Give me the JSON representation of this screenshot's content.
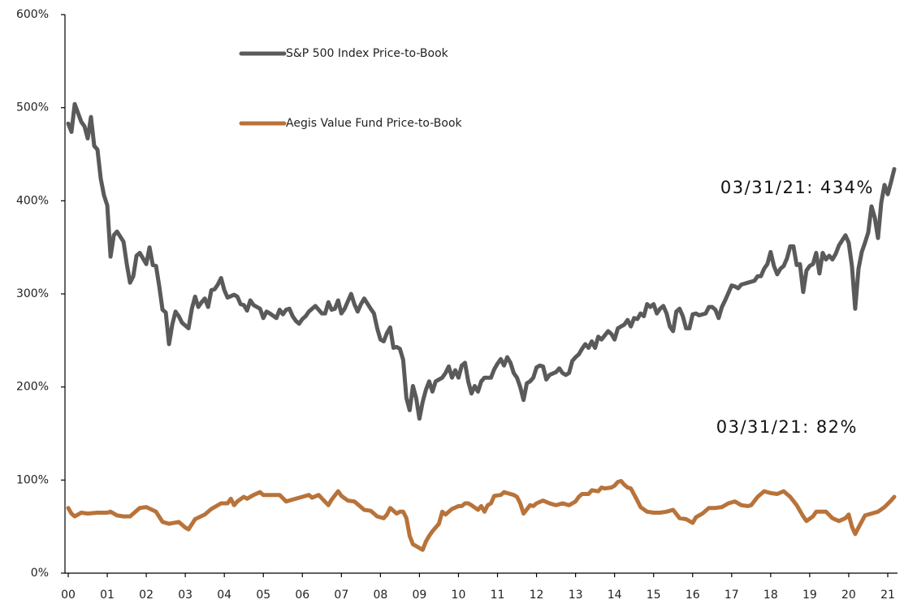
{
  "chart_data": {
    "type": "line",
    "series": [
      {
        "name": "S&P 500 Index Price-to-Book",
        "color": "#5a5a5a",
        "x": [
          0,
          1,
          2,
          4,
          5,
          6,
          7,
          8,
          9,
          10,
          11,
          12,
          13,
          14,
          15,
          17,
          18,
          19,
          20,
          21,
          22,
          24,
          25,
          26,
          27,
          28,
          29,
          30,
          31,
          32,
          33,
          34,
          35,
          37,
          38,
          39,
          40,
          41,
          42,
          43,
          44,
          45,
          46,
          47,
          48,
          49,
          51,
          52,
          53,
          54,
          55,
          56,
          57,
          59,
          60,
          61,
          62,
          64,
          65,
          66,
          67,
          68,
          69,
          70,
          71,
          72,
          73,
          74,
          75,
          76,
          78,
          79,
          80,
          81,
          82,
          83,
          84,
          85,
          87,
          88,
          89,
          90,
          91,
          93,
          94,
          95,
          96,
          97,
          98,
          99,
          100,
          101,
          102,
          103,
          104,
          105,
          106,
          107,
          108,
          109,
          110,
          111,
          112,
          113,
          115,
          116,
          117,
          118,
          119,
          120,
          121,
          122,
          123,
          124,
          125,
          126,
          127,
          128,
          130,
          131,
          132,
          133,
          134,
          135,
          136,
          137,
          138,
          139,
          140,
          141,
          142,
          143,
          144,
          145,
          146,
          147,
          148,
          150,
          151,
          152,
          153,
          154,
          155,
          156,
          157,
          158,
          159,
          160,
          161,
          162,
          163,
          164,
          166,
          167,
          168,
          169,
          170,
          171,
          172,
          173,
          174,
          175,
          176,
          177,
          178,
          179,
          180,
          181,
          182,
          183,
          184,
          185,
          186,
          187,
          188,
          189,
          190,
          191,
          192,
          193,
          194,
          196,
          197,
          198,
          199,
          200,
          201,
          202,
          204,
          205,
          206,
          207,
          208,
          209,
          211,
          212,
          213,
          214,
          215,
          216,
          217,
          218,
          219,
          220,
          221,
          222,
          223,
          224,
          225,
          226,
          227,
          228,
          229,
          230,
          231,
          232,
          233,
          234,
          235,
          236,
          237,
          239,
          240,
          241,
          242,
          243,
          244,
          245,
          246,
          247,
          248,
          249,
          250,
          251,
          252,
          253,
          254
        ],
        "values": [
          483,
          474,
          504,
          485,
          480,
          467,
          490,
          459,
          455,
          424,
          406,
          395,
          340,
          363,
          367,
          356,
          332,
          312,
          319,
          341,
          344,
          332,
          350,
          331,
          330,
          308,
          283,
          280,
          246,
          267,
          281,
          276,
          269,
          263,
          284,
          297,
          286,
          291,
          295,
          286,
          304,
          305,
          310,
          317,
          304,
          296,
          299,
          297,
          289,
          288,
          282,
          293,
          288,
          284,
          274,
          281,
          279,
          274,
          283,
          278,
          283,
          284,
          276,
          271,
          268,
          273,
          276,
          281,
          284,
          287,
          279,
          279,
          291,
          283,
          284,
          293,
          279,
          284,
          300,
          289,
          281,
          289,
          295,
          284,
          279,
          263,
          251,
          249,
          258,
          264,
          242,
          243,
          241,
          229,
          188,
          175,
          201,
          188,
          166,
          184,
          197,
          206,
          195,
          206,
          210,
          215,
          222,
          210,
          218,
          210,
          223,
          226,
          206,
          193,
          201,
          195,
          206,
          210,
          210,
          219,
          225,
          230,
          223,
          232,
          226,
          215,
          210,
          200,
          186,
          204,
          206,
          210,
          221,
          223,
          222,
          208,
          213,
          216,
          220,
          215,
          213,
          215,
          228,
          232,
          235,
          241,
          246,
          242,
          249,
          242,
          254,
          251,
          260,
          257,
          251,
          263,
          265,
          267,
          272,
          265,
          274,
          273,
          279,
          276,
          289,
          286,
          289,
          279,
          284,
          287,
          279,
          265,
          260,
          281,
          284,
          276,
          263,
          263,
          278,
          279,
          277,
          279,
          286,
          286,
          283,
          274,
          286,
          293,
          309,
          308,
          306,
          310,
          311,
          312,
          314,
          319,
          319,
          327,
          332,
          345,
          330,
          321,
          327,
          330,
          338,
          351,
          351,
          331,
          332,
          302,
          325,
          330,
          332,
          344,
          322,
          344,
          337,
          341,
          337,
          343,
          352,
          363,
          355,
          330,
          284,
          327,
          345,
          355,
          366,
          394,
          382,
          360,
          398,
          417,
          407,
          420,
          434
        ]
      },
      {
        "name": "Aegis Value Fund Price-to-Book",
        "color": "#b8733a",
        "x": [
          0,
          1,
          2,
          3,
          4,
          6,
          9,
          12,
          13,
          15,
          17,
          19,
          22,
          24,
          27,
          29,
          31,
          34,
          36,
          37,
          39,
          42,
          44,
          47,
          49,
          50,
          51,
          52,
          54,
          55,
          57,
          59,
          60,
          63,
          65,
          67,
          69,
          72,
          74,
          75,
          77,
          80,
          81,
          83,
          84,
          86,
          88,
          91,
          93,
          95,
          97,
          98,
          99,
          101,
          102,
          103,
          104,
          105,
          106,
          107,
          109,
          110,
          111,
          112,
          114,
          115,
          116,
          118,
          120,
          121,
          122,
          123,
          124,
          126,
          127,
          128,
          129,
          130,
          131,
          133,
          134,
          135,
          137,
          138,
          139,
          140,
          142,
          143,
          144,
          146,
          148,
          150,
          152,
          154,
          156,
          157,
          158,
          160,
          161,
          163,
          164,
          165,
          167,
          168,
          169,
          170,
          171,
          172,
          173,
          175,
          176,
          178,
          180,
          182,
          184,
          186,
          188,
          190,
          192,
          193,
          195,
          197,
          199,
          201,
          203,
          205,
          207,
          209,
          210,
          212,
          214,
          216,
          218,
          220,
          222,
          224,
          226,
          227,
          229,
          230,
          233,
          235,
          237,
          239,
          240,
          241,
          242,
          243,
          245,
          247,
          249,
          251,
          253,
          254
        ],
        "values": [
          70,
          64,
          61,
          63,
          65,
          64,
          65,
          65,
          66,
          62,
          61,
          61,
          70,
          71,
          66,
          55,
          53,
          55,
          49,
          47,
          58,
          63,
          69,
          75,
          75,
          80,
          73,
          77,
          82,
          80,
          84,
          87,
          84,
          84,
          84,
          77,
          79,
          82,
          84,
          81,
          84,
          73,
          79,
          88,
          83,
          78,
          77,
          68,
          67,
          61,
          59,
          63,
          70,
          64,
          66,
          66,
          59,
          40,
          31,
          29,
          25,
          34,
          40,
          45,
          53,
          66,
          63,
          69,
          72,
          72,
          75,
          75,
          73,
          68,
          72,
          66,
          73,
          75,
          83,
          84,
          87,
          86,
          84,
          82,
          75,
          64,
          73,
          72,
          75,
          78,
          75,
          73,
          75,
          73,
          77,
          82,
          85,
          85,
          89,
          88,
          92,
          91,
          92,
          94,
          98,
          99,
          95,
          92,
          91,
          78,
          71,
          66,
          65,
          65,
          66,
          68,
          59,
          58,
          54,
          60,
          64,
          70,
          70,
          71,
          75,
          77,
          73,
          72,
          73,
          82,
          88,
          86,
          85,
          88,
          82,
          73,
          61,
          56,
          61,
          66,
          66,
          59,
          56,
          59,
          63,
          50,
          42,
          49,
          62,
          64,
          66,
          71,
          78,
          82
        ]
      }
    ],
    "annotations": [
      "03/31/21: 434%",
      "03/31/21: 82%"
    ],
    "xlim": [
      -1,
      255
    ],
    "xticks": [
      {
        "value": 0,
        "label": "00"
      },
      {
        "value": 12,
        "label": "01"
      },
      {
        "value": 24,
        "label": "02"
      },
      {
        "value": 36,
        "label": "03"
      },
      {
        "value": 48,
        "label": "04"
      },
      {
        "value": 60,
        "label": "05"
      },
      {
        "value": 72,
        "label": "06"
      },
      {
        "value": 84,
        "label": "07"
      },
      {
        "value": 96,
        "label": "08"
      },
      {
        "value": 108,
        "label": "09"
      },
      {
        "value": 120,
        "label": "10"
      },
      {
        "value": 132,
        "label": "11"
      },
      {
        "value": 144,
        "label": "12"
      },
      {
        "value": 156,
        "label": "13"
      },
      {
        "value": 168,
        "label": "14"
      },
      {
        "value": 180,
        "label": "15"
      },
      {
        "value": 192,
        "label": "16"
      },
      {
        "value": 204,
        "label": "17"
      },
      {
        "value": 216,
        "label": "18"
      },
      {
        "value": 228,
        "label": "19"
      },
      {
        "value": 240,
        "label": "20"
      },
      {
        "value": 252,
        "label": "21"
      }
    ],
    "ylim": [
      0,
      600
    ],
    "yticks": [
      {
        "value": 0,
        "label": "0%"
      },
      {
        "value": 100,
        "label": "100%"
      },
      {
        "value": 200,
        "label": "200%"
      },
      {
        "value": 300,
        "label": "300%"
      },
      {
        "value": 400,
        "label": "400%"
      },
      {
        "value": 500,
        "label": "500%"
      },
      {
        "value": 600,
        "label": "600%"
      }
    ],
    "grid": false
  }
}
